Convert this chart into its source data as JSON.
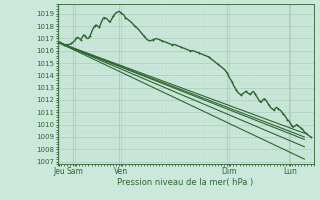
{
  "xlabel": "Pression niveau de la mer( hPa )",
  "bg_color": "#cce8dc",
  "grid_major_color": "#aaccbb",
  "grid_minor_color": "#bbddcc",
  "line_color": "#2d6630",
  "ylim": [
    1006.8,
    1019.8
  ],
  "yticks": [
    1007,
    1008,
    1009,
    1010,
    1011,
    1012,
    1013,
    1014,
    1015,
    1016,
    1017,
    1018,
    1019
  ],
  "vline_positions": [
    0.5,
    2.0,
    5.5,
    7.5
  ],
  "xtick_positions": [
    0.05,
    0.55,
    2.05,
    5.55,
    7.55
  ],
  "xtick_labels": [
    "Jeu",
    "Sam",
    "Ven",
    "Dim",
    "Lun"
  ],
  "fan_lines": [
    {
      "x0": 0.0,
      "y0": 1016.7,
      "x1": 8.0,
      "y1": 1007.2
    },
    {
      "x0": 0.0,
      "y0": 1016.7,
      "x1": 8.0,
      "y1": 1008.2
    },
    {
      "x0": 0.0,
      "y0": 1016.7,
      "x1": 8.0,
      "y1": 1008.8
    },
    {
      "x0": 0.0,
      "y0": 1016.7,
      "x1": 8.0,
      "y1": 1009.0
    },
    {
      "x0": 0.0,
      "y0": 1016.7,
      "x1": 8.0,
      "y1": 1009.3
    }
  ],
  "obs_x": [
    0.0,
    0.08,
    0.15,
    0.22,
    0.3,
    0.38,
    0.45,
    0.5,
    0.55,
    0.6,
    0.65,
    0.7,
    0.75,
    0.8,
    0.85,
    0.9,
    0.95,
    1.0,
    1.05,
    1.1,
    1.15,
    1.2,
    1.25,
    1.3,
    1.35,
    1.4,
    1.45,
    1.5,
    1.6,
    1.7,
    1.8,
    1.9,
    2.0,
    2.05,
    2.1,
    2.15,
    2.2,
    2.3,
    2.4,
    2.5,
    2.6,
    2.7,
    2.8,
    2.9,
    3.0,
    3.1,
    3.2,
    3.3,
    3.4,
    3.5,
    3.6,
    3.7,
    3.8,
    3.9,
    4.0,
    4.1,
    4.2,
    4.3,
    4.4,
    4.5,
    4.6,
    4.7,
    4.8,
    4.9,
    5.0,
    5.1,
    5.2,
    5.3,
    5.4,
    5.5,
    5.55,
    5.6,
    5.65,
    5.7,
    5.75,
    5.8,
    5.85,
    5.9,
    5.95,
    6.0,
    6.05,
    6.1,
    6.15,
    6.2,
    6.25,
    6.3,
    6.35,
    6.4,
    6.45,
    6.5,
    6.55,
    6.6,
    6.65,
    6.7,
    6.75,
    6.8,
    6.85,
    6.9,
    6.95,
    7.0,
    7.05,
    7.1,
    7.15,
    7.2,
    7.25,
    7.3,
    7.35,
    7.4,
    7.45,
    7.5,
    7.55,
    7.6,
    7.65,
    7.7,
    7.75,
    7.8,
    7.85,
    7.9,
    7.95,
    8.0,
    8.05,
    8.1,
    8.15,
    8.2
  ],
  "obs_y": [
    1016.7,
    1016.7,
    1016.6,
    1016.5,
    1016.5,
    1016.5,
    1016.6,
    1016.7,
    1016.8,
    1017.0,
    1017.1,
    1017.0,
    1016.9,
    1017.1,
    1017.3,
    1017.2,
    1017.0,
    1017.0,
    1017.2,
    1017.5,
    1017.8,
    1018.0,
    1018.1,
    1018.0,
    1017.9,
    1018.2,
    1018.5,
    1018.7,
    1018.6,
    1018.3,
    1018.8,
    1019.1,
    1019.2,
    1019.1,
    1019.0,
    1018.9,
    1018.7,
    1018.5,
    1018.3,
    1018.0,
    1017.8,
    1017.5,
    1017.2,
    1016.9,
    1016.8,
    1016.9,
    1017.0,
    1016.9,
    1016.8,
    1016.7,
    1016.6,
    1016.5,
    1016.5,
    1016.4,
    1016.3,
    1016.2,
    1016.1,
    1016.0,
    1016.0,
    1015.9,
    1015.8,
    1015.7,
    1015.6,
    1015.5,
    1015.3,
    1015.1,
    1014.9,
    1014.7,
    1014.5,
    1014.2,
    1013.9,
    1013.7,
    1013.5,
    1013.2,
    1013.0,
    1012.8,
    1012.6,
    1012.5,
    1012.4,
    1012.5,
    1012.6,
    1012.7,
    1012.6,
    1012.5,
    1012.5,
    1012.6,
    1012.7,
    1012.5,
    1012.3,
    1012.1,
    1011.9,
    1011.8,
    1012.0,
    1012.1,
    1012.0,
    1011.8,
    1011.6,
    1011.4,
    1011.3,
    1011.2,
    1011.3,
    1011.4,
    1011.3,
    1011.2,
    1011.1,
    1010.9,
    1010.8,
    1010.6,
    1010.4,
    1010.3,
    1010.1,
    1009.9,
    1009.8,
    1009.9,
    1010.0,
    1009.9,
    1009.8,
    1009.7,
    1009.6,
    1009.4,
    1009.3,
    1009.2,
    1009.1,
    1009.0
  ],
  "xlim": [
    0.0,
    8.3
  ]
}
